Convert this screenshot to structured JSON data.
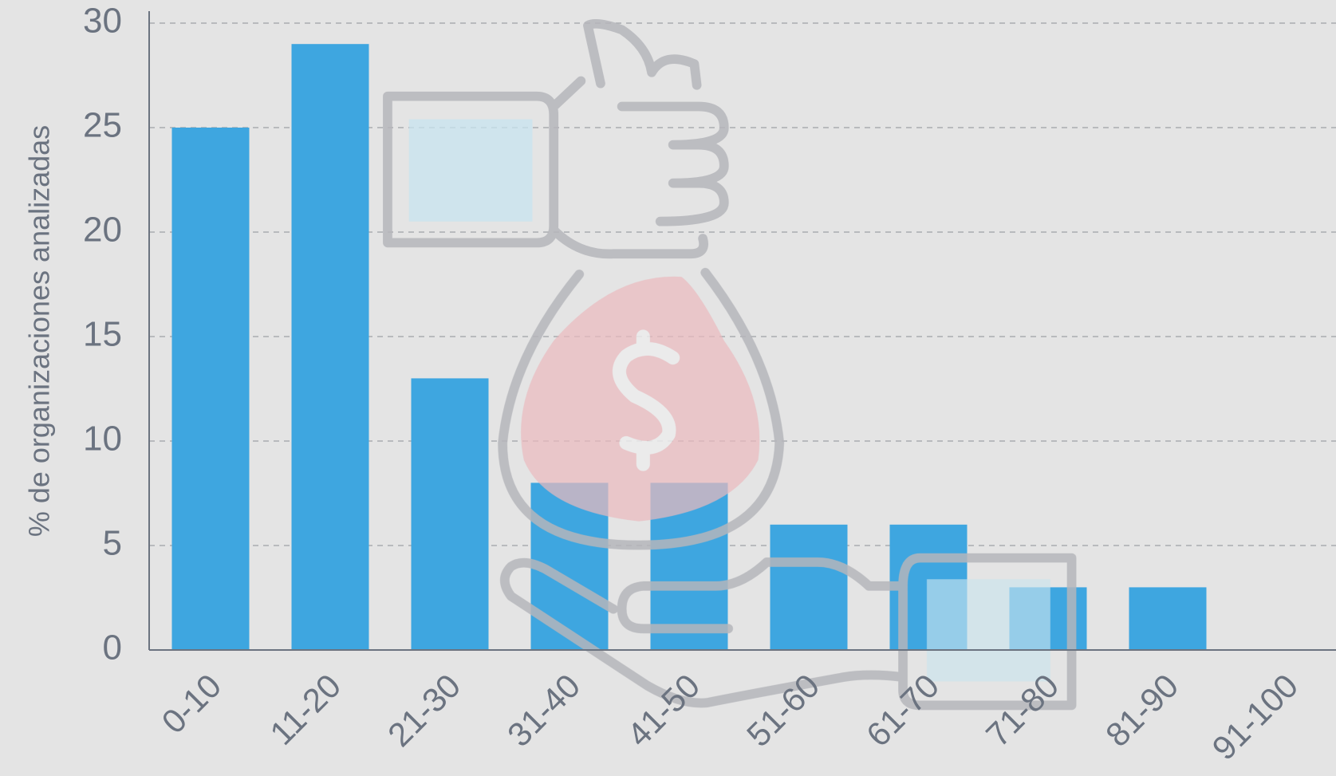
{
  "chart_data": {
    "type": "bar",
    "y_label": "% de organizaciones analizadas",
    "categories": [
      "0-10",
      "11-20",
      "21-30",
      "31-40",
      "41-50",
      "51-60",
      "61-70",
      "71-80",
      "81-90",
      "91-100"
    ],
    "values": [
      25,
      29,
      13,
      8,
      8,
      6,
      6,
      3,
      3,
      0
    ],
    "color": "#3ea6e0",
    "ylim": [
      0,
      30
    ],
    "yticks": [
      0,
      5,
      10,
      15,
      20,
      25,
      30
    ],
    "grid": true
  }
}
